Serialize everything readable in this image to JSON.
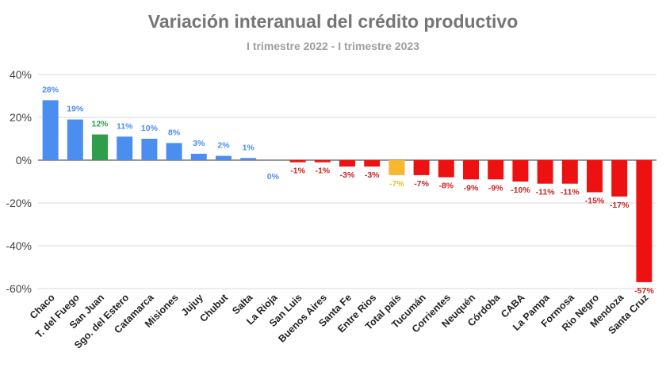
{
  "chart_data": {
    "type": "bar",
    "title": "Variación interanual del crédito productivo",
    "subtitle": "I trimestre 2022 - I trimestre 2023",
    "xlabel": "",
    "ylabel": "",
    "ylim": [
      -60,
      40
    ],
    "yticks": [
      40,
      20,
      0,
      -20,
      -40,
      -60
    ],
    "ytick_labels": [
      "40%",
      "20%",
      "0%",
      "-20%",
      "-40%",
      "-60%"
    ],
    "grid": true,
    "categories": [
      "Chaco",
      "T. del Fuego",
      "San Juan",
      "Sgo. del Estero",
      "Catamarca",
      "Misiones",
      "Jujuy",
      "Chubut",
      "Salta",
      "La Rioja",
      "San Luis",
      "Buenos Aires",
      "Santa Fe",
      "Entre Rios",
      "Total país",
      "Tucumán",
      "Corrientes",
      "Neuquén",
      "Córdoba",
      "CABA",
      "La Pampa",
      "Formosa",
      "Rio Negro",
      "Mendoza",
      "Santa Cruz"
    ],
    "values": [
      28,
      19,
      12,
      11,
      10,
      8,
      3,
      2,
      1,
      0,
      -1,
      -1,
      -3,
      -3,
      -7,
      -7,
      -8,
      -9,
      -9,
      -10,
      -11,
      -11,
      -15,
      -17,
      -57
    ],
    "data_labels": [
      "28%",
      "19%",
      "12%",
      "11%",
      "10%",
      "8%",
      "3%",
      "2%",
      "1%",
      "0%",
      "-1%",
      "-1%",
      "-3%",
      "-3%",
      "-7%",
      "-7%",
      "-8%",
      "-9%",
      "-9%",
      "-10%",
      "-11%",
      "-11%",
      "-15%",
      "-17%",
      "-57%"
    ],
    "bar_colors": [
      "#4a8ef0",
      "#4a8ef0",
      "#2e9e4a",
      "#4a8ef0",
      "#4a8ef0",
      "#4a8ef0",
      "#4a8ef0",
      "#4a8ef0",
      "#4a8ef0",
      "#4a8ef0",
      "#ee1111",
      "#ee1111",
      "#ee1111",
      "#ee1111",
      "#f5b82e",
      "#ee1111",
      "#ee1111",
      "#ee1111",
      "#ee1111",
      "#ee1111",
      "#ee1111",
      "#ee1111",
      "#ee1111",
      "#ee1111",
      "#ee1111"
    ],
    "label_colors": [
      "#4a8ef0",
      "#4a8ef0",
      "#2e9e4a",
      "#4a8ef0",
      "#4a8ef0",
      "#4a8ef0",
      "#4a8ef0",
      "#4a8ef0",
      "#4a8ef0",
      "#4a8ef0",
      "#cc2222",
      "#cc2222",
      "#cc2222",
      "#cc2222",
      "#f5b82e",
      "#cc2222",
      "#cc2222",
      "#cc2222",
      "#cc2222",
      "#cc2222",
      "#cc2222",
      "#cc2222",
      "#cc2222",
      "#cc2222",
      "#cc2222"
    ]
  }
}
